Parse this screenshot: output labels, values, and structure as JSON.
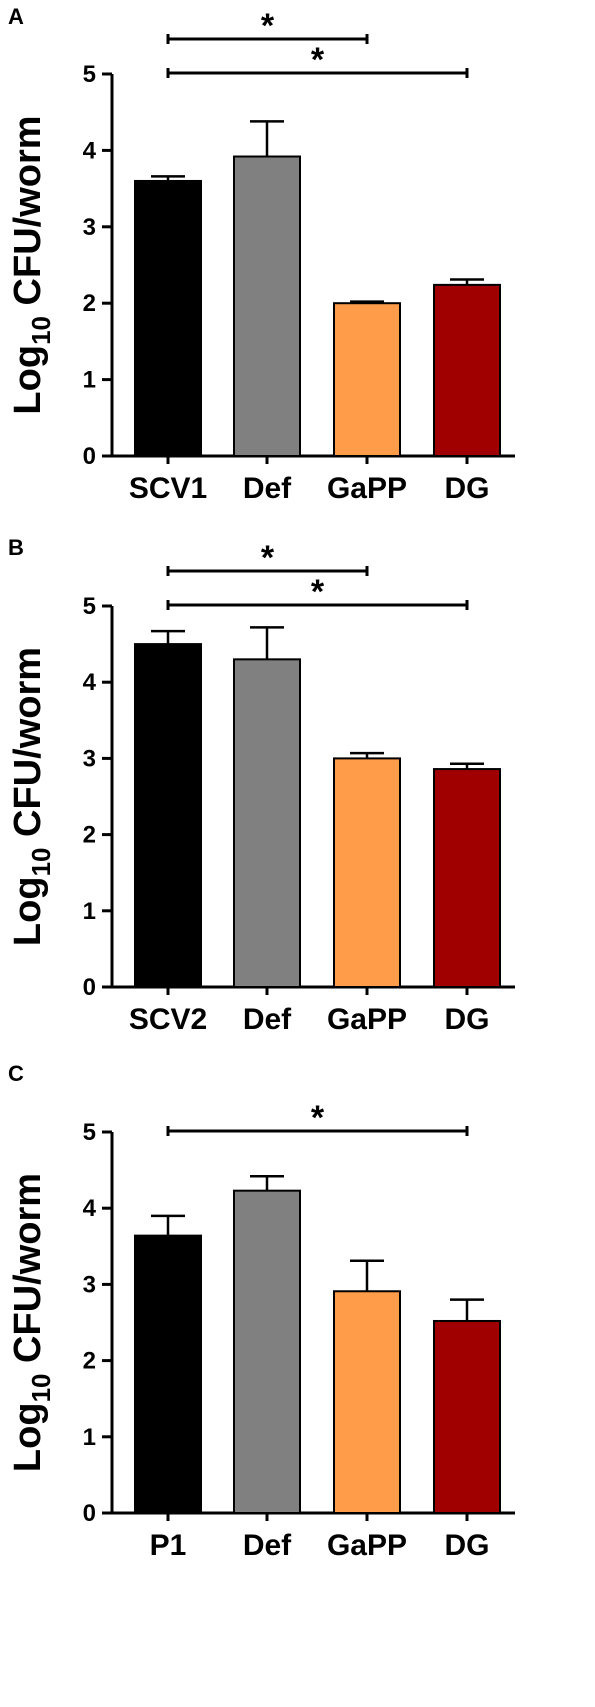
{
  "chart_data": [
    {
      "panel": "A",
      "type": "bar",
      "categories": [
        "SCV1",
        "Def",
        "GaPP",
        "DG"
      ],
      "values": [
        3.6,
        3.92,
        2.0,
        2.24
      ],
      "errors": [
        0.06,
        0.46,
        0.02,
        0.07
      ],
      "colors": [
        "#000000",
        "#808080",
        "#ff9c4a",
        "#a00000"
      ],
      "ylabel_main": "Log",
      "ylabel_sub": "10",
      "ylabel_rest": " CFU/worm",
      "ylim": [
        0,
        5
      ],
      "yticks": [
        "0",
        "1",
        "2",
        "3",
        "4",
        "5"
      ],
      "significance": [
        {
          "from": "SCV1",
          "to": "GaPP",
          "label": "*"
        },
        {
          "from": "SCV1",
          "to": "DG",
          "label": "*"
        }
      ]
    },
    {
      "panel": "B",
      "type": "bar",
      "categories": [
        "SCV2",
        "Def",
        "GaPP",
        "DG"
      ],
      "values": [
        4.5,
        4.3,
        3.0,
        2.86
      ],
      "errors": [
        0.17,
        0.42,
        0.07,
        0.07
      ],
      "colors": [
        "#000000",
        "#808080",
        "#ff9c4a",
        "#a00000"
      ],
      "ylabel_main": "Log",
      "ylabel_sub": "10",
      "ylabel_rest": " CFU/worm",
      "ylim": [
        0,
        5
      ],
      "yticks": [
        "0",
        "1",
        "2",
        "3",
        "4",
        "5"
      ],
      "significance": [
        {
          "from": "SCV2",
          "to": "GaPP",
          "label": "*"
        },
        {
          "from": "SCV2",
          "to": "DG",
          "label": "*"
        }
      ]
    },
    {
      "panel": "C",
      "type": "bar",
      "categories": [
        "P1",
        "Def",
        "GaPP",
        "DG"
      ],
      "values": [
        3.64,
        4.23,
        2.91,
        2.52
      ],
      "errors": [
        0.26,
        0.19,
        0.4,
        0.28
      ],
      "colors": [
        "#000000",
        "#808080",
        "#ff9c4a",
        "#a00000"
      ],
      "ylabel_main": "Log",
      "ylabel_sub": "10",
      "ylabel_rest": " CFU/worm",
      "ylim": [
        0,
        5
      ],
      "yticks": [
        "0",
        "1",
        "2",
        "3",
        "4",
        "5"
      ],
      "significance": [
        {
          "from": "P1",
          "to": "DG",
          "label": "*"
        }
      ]
    }
  ]
}
